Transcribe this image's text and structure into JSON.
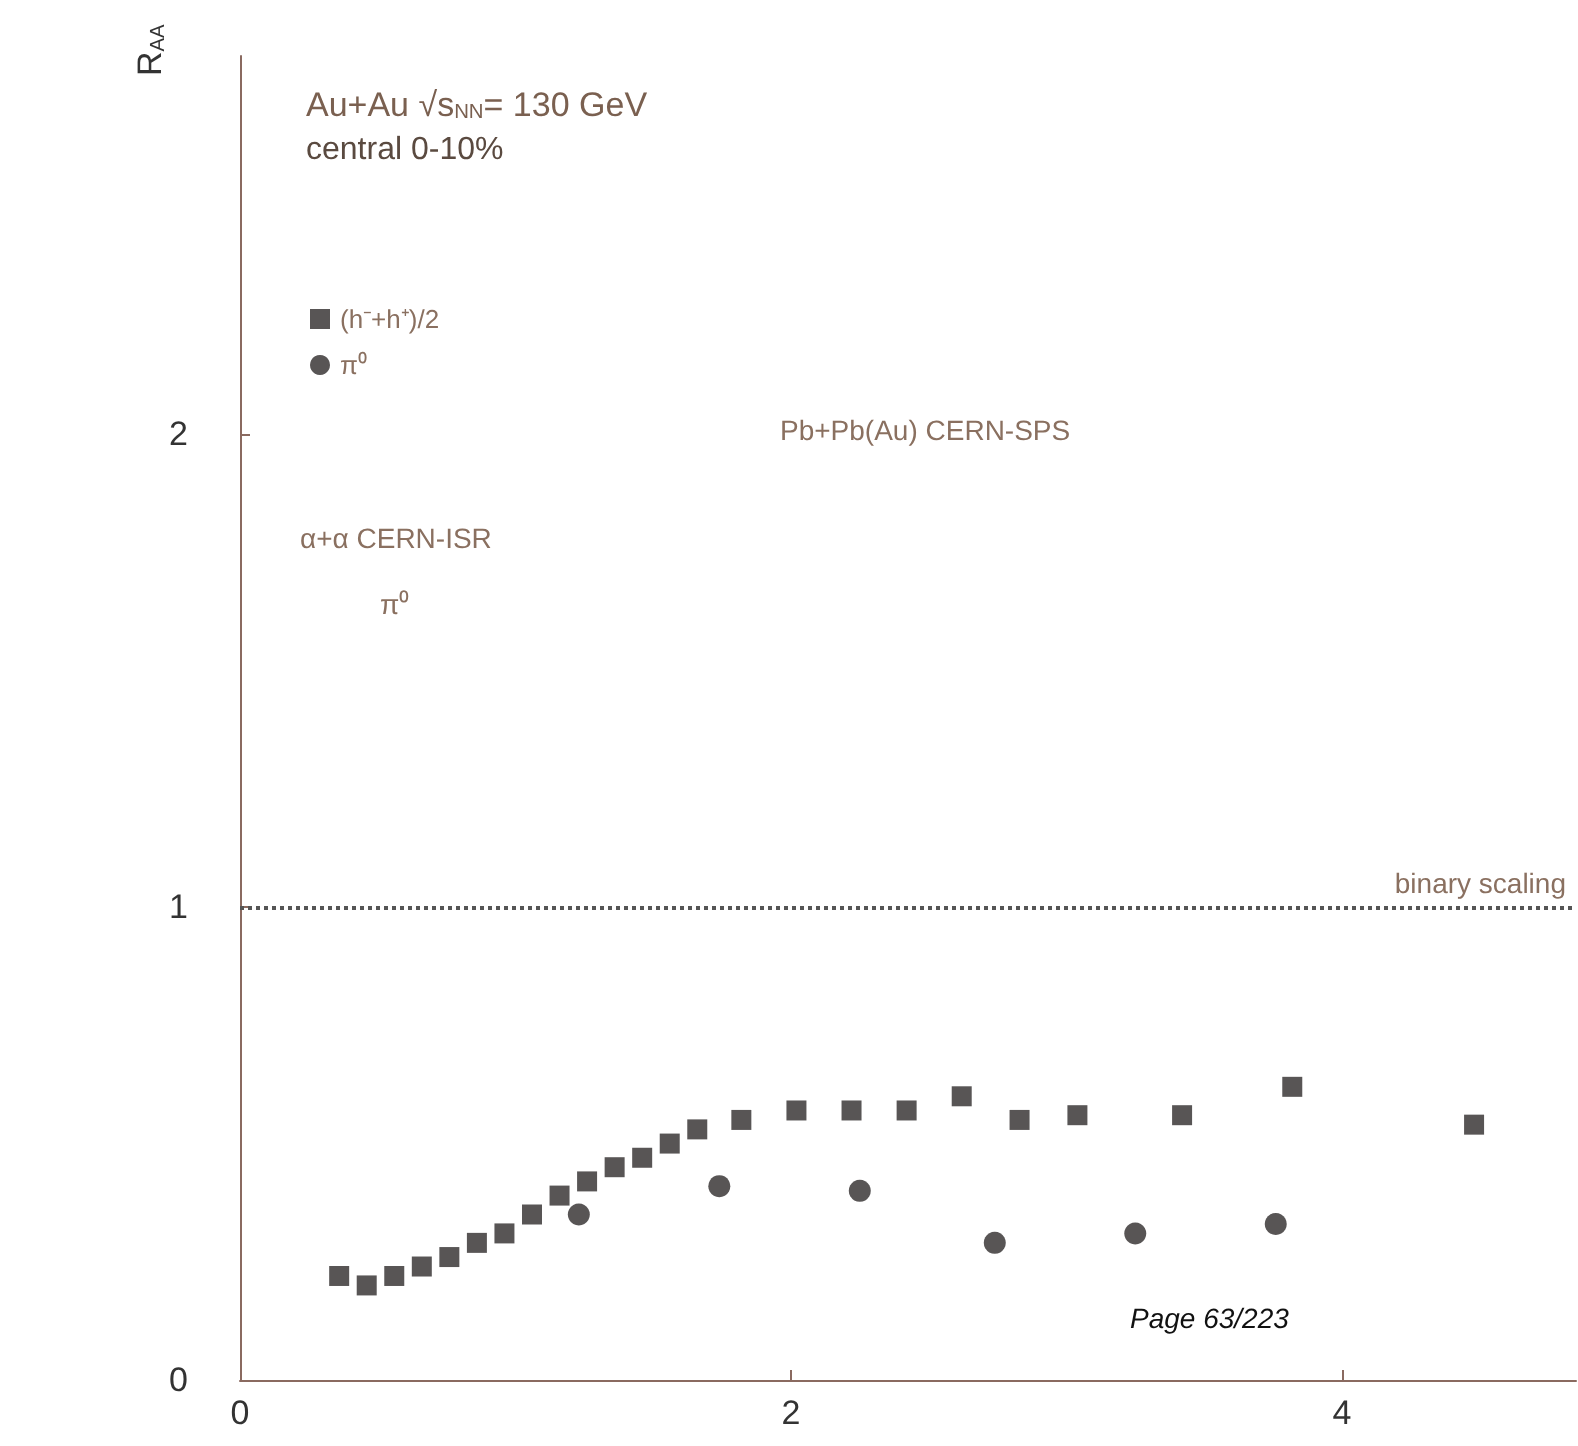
{
  "chart_data": {
    "type": "scatter",
    "title": "Au+Au √s$_{NN}$= 130 GeV",
    "subtitle": "central 0-10%",
    "ylabel": "R$_{AA}$",
    "xlim": [
      0,
      4.85
    ],
    "xticks": [
      0,
      2,
      4
    ],
    "ylim": [
      0,
      2.8
    ],
    "yticks": [
      0,
      1,
      2
    ],
    "grid": false,
    "legend": "top left",
    "series": [
      {
        "name": "(h⁻+h⁺)/2",
        "color": "#2e2a2a",
        "marker": "square",
        "x": [
          0.36,
          0.46,
          0.56,
          0.66,
          0.76,
          0.86,
          0.96,
          1.06,
          1.16,
          1.26,
          1.36,
          1.46,
          1.56,
          1.66,
          1.82,
          2.02,
          2.22,
          2.42,
          2.62,
          2.83,
          3.04,
          3.42,
          3.82,
          4.48
        ],
        "values": [
          0.22,
          0.2,
          0.22,
          0.24,
          0.26,
          0.29,
          0.31,
          0.35,
          0.39,
          0.42,
          0.45,
          0.47,
          0.5,
          0.53,
          0.55,
          0.57,
          0.57,
          0.57,
          0.6,
          0.55,
          0.56,
          0.56,
          0.62,
          0.54
        ]
      },
      {
        "name": "π⁰",
        "color": "#2e2a2a",
        "marker": "circle",
        "x": [
          1.23,
          1.74,
          2.25,
          2.74,
          3.25,
          3.76
        ],
        "values": [
          0.35,
          0.41,
          0.4,
          0.29,
          0.31,
          0.33
        ]
      }
    ],
    "ref_lines": [
      {
        "axis": "y",
        "value": 1,
        "label": "binary scaling",
        "line_style": "dotted",
        "color": "#555555"
      }
    ],
    "annotations": [
      "Pb+Pb(Au) CERN-SPS",
      "α+α CERN-ISR",
      "π⁰",
      "Page 63/223"
    ]
  }
}
